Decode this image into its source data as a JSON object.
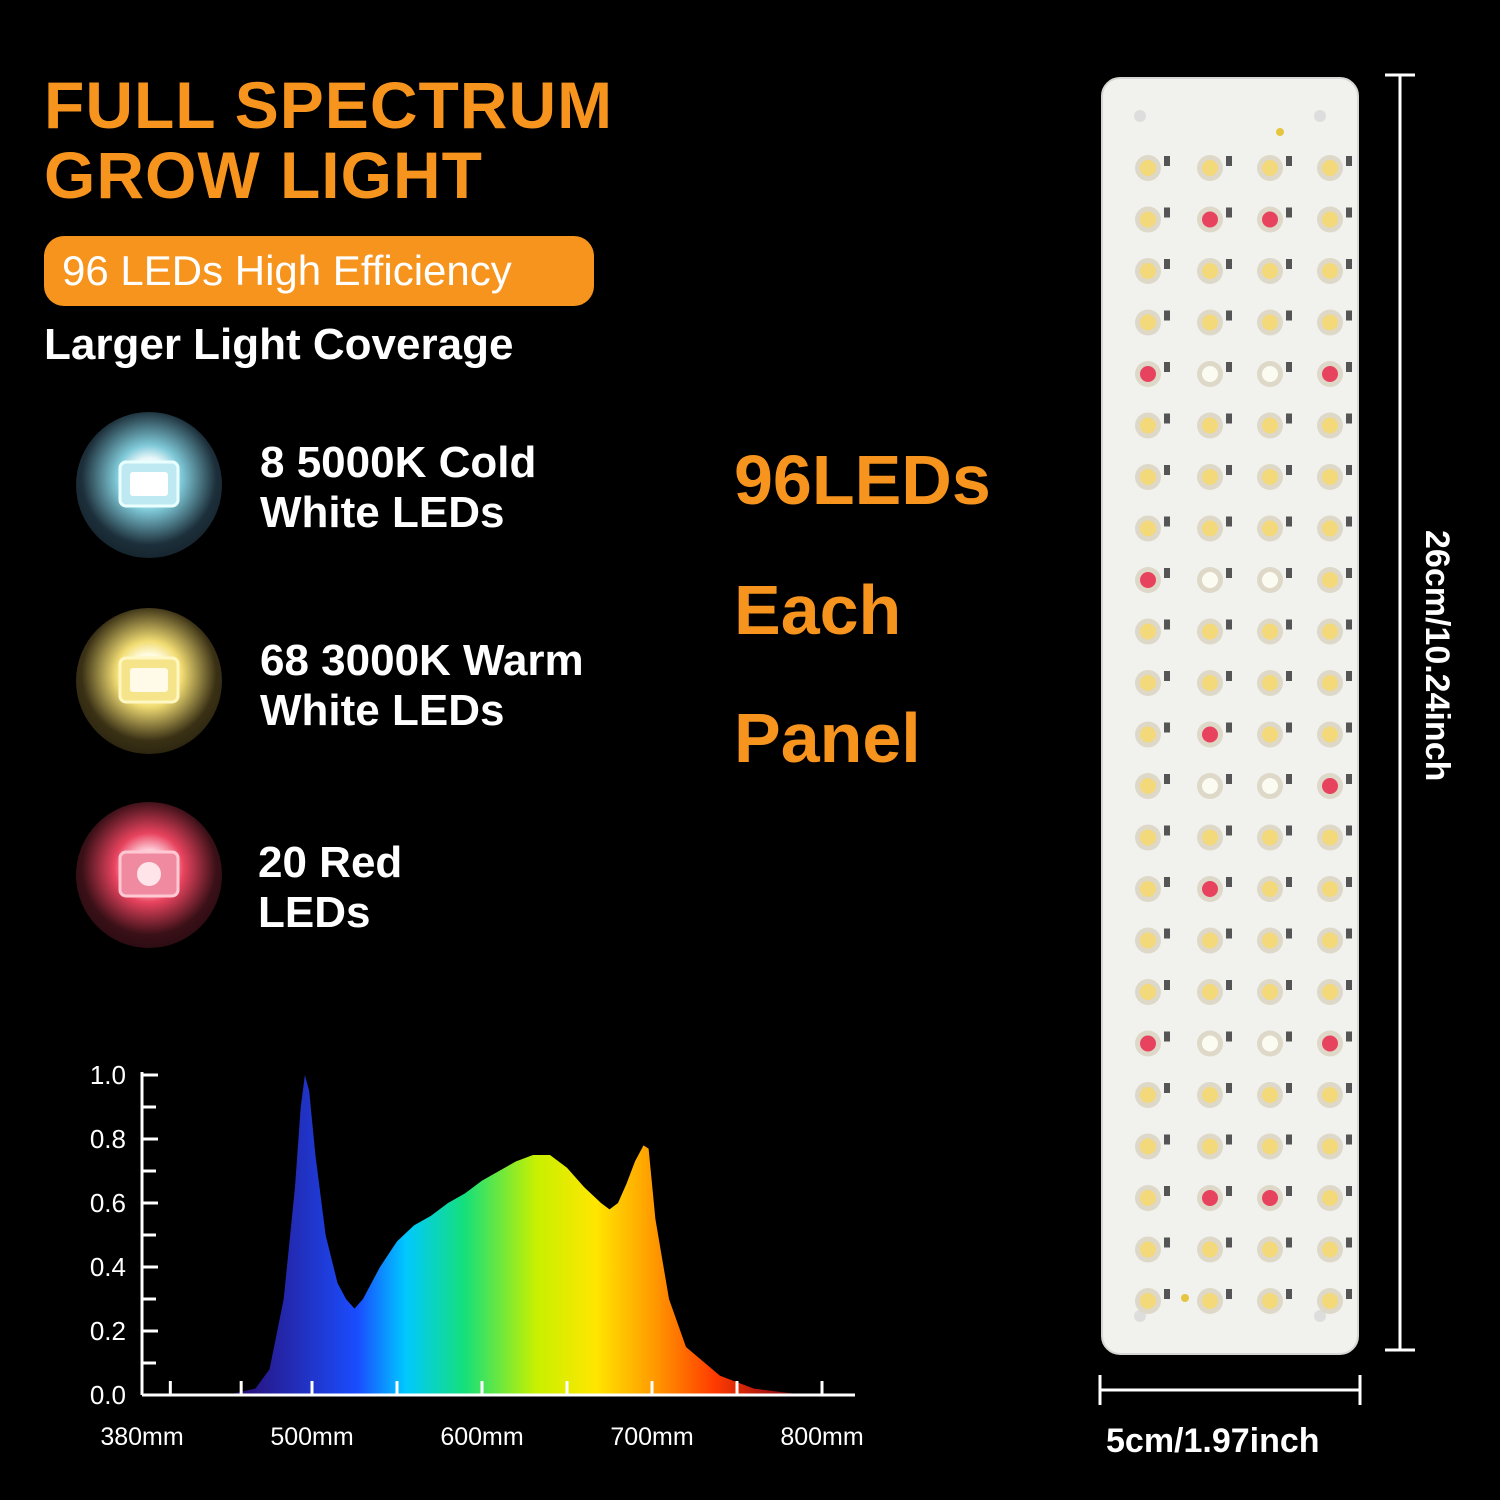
{
  "heading": {
    "line1": "FULL SPECTRUM",
    "line2": "GROW LIGHT",
    "badge": "96 LEDs High Efficiency",
    "subtitle": "Larger Light Coverage"
  },
  "led_types": [
    {
      "line1": "8 5000K Cold",
      "line2": "White LEDs",
      "icon": "cold-white-chip-icon",
      "color": "#cfeef5"
    },
    {
      "line1": "68 3000K Warm",
      "line2": "White LEDs",
      "icon": "warm-white-chip-icon",
      "color": "#f7e27a"
    },
    {
      "line1": "20 Red",
      "line2": "LEDs",
      "icon": "red-chip-icon",
      "color": "#e8435e"
    }
  ],
  "panel_caption": {
    "line1": "96LEDs",
    "line2": "Each",
    "line3": "Panel"
  },
  "dimensions": {
    "height": "26cm/10.24inch",
    "width": "5cm/1.97inch"
  },
  "colors": {
    "accent": "#f7941d",
    "background": "#000000"
  },
  "chart_data": {
    "type": "area",
    "x": [
      440,
      460,
      470,
      480,
      488,
      492,
      495,
      498,
      502,
      508,
      515,
      520,
      525,
      530,
      540,
      550,
      560,
      570,
      580,
      590,
      600,
      610,
      620,
      630,
      640,
      650,
      660,
      670,
      675,
      680,
      685,
      690,
      695,
      698,
      702,
      710,
      720,
      740,
      760,
      790,
      800
    ],
    "y": [
      0.0,
      0.02,
      0.08,
      0.3,
      0.65,
      0.9,
      1.0,
      0.95,
      0.75,
      0.5,
      0.35,
      0.3,
      0.27,
      0.3,
      0.4,
      0.48,
      0.53,
      0.56,
      0.6,
      0.63,
      0.67,
      0.7,
      0.73,
      0.75,
      0.75,
      0.71,
      0.65,
      0.6,
      0.58,
      0.6,
      0.66,
      0.73,
      0.78,
      0.77,
      0.55,
      0.3,
      0.15,
      0.06,
      0.02,
      0.0,
      0.0
    ],
    "xticks": [
      "380mm",
      "500mm",
      "600mm",
      "700mm",
      "800mm"
    ],
    "xtick_values": [
      380,
      500,
      600,
      700,
      800
    ],
    "yticks": [
      "0.0",
      "0.2",
      "0.4",
      "0.6",
      "0.8",
      "1.0"
    ],
    "ytick_values": [
      0.0,
      0.2,
      0.4,
      0.6,
      0.8,
      1.0
    ],
    "xlim": [
      400,
      820
    ],
    "ylim": [
      0.0,
      1.0
    ],
    "title": "",
    "xlabel": "",
    "ylabel": "",
    "grid": false
  }
}
